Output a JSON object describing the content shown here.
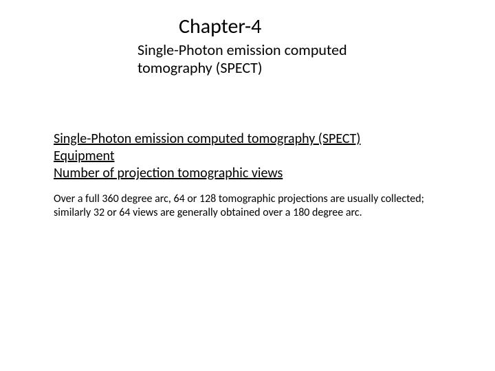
{
  "chapter": {
    "title": "Chapter-4",
    "subtitle": "Single-Photon emission computed tomography (SPECT)"
  },
  "section": {
    "heading1": "Single-Photon emission computed tomography (SPECT)",
    "heading2": "Equipment",
    "heading3": "Number of projection tomographic views"
  },
  "body": {
    "paragraph": "Over a full 360 degree arc, 64 or 128 tomographic projections are usually collected; similarly 32 or 64 views are generally obtained over a 180 degree arc."
  },
  "styles": {
    "background_color": "#ffffff",
    "text_color": "#000000",
    "title_fontsize": 30,
    "subtitle_fontsize": 22,
    "heading_fontsize": 20,
    "body_fontsize": 16
  }
}
